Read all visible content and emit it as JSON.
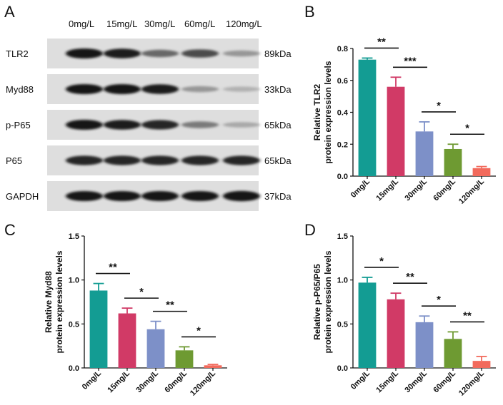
{
  "panel_letters": {
    "a": "A",
    "b": "B",
    "c": "C",
    "d": "D"
  },
  "blot": {
    "concentrations": [
      "0mg/L",
      "15mg/L",
      "30mg/L",
      "60mg/L",
      "120mg/L"
    ],
    "proteins": [
      {
        "name": "TLR2",
        "size": "89kDa",
        "intensity": [
          1.0,
          0.95,
          0.55,
          0.7,
          0.3
        ]
      },
      {
        "name": "Myd88",
        "size": "33kDa",
        "intensity": [
          1.0,
          1.0,
          0.95,
          0.3,
          0.15
        ]
      },
      {
        "name": "p-P65",
        "size": "65kDa",
        "intensity": [
          1.0,
          0.95,
          0.9,
          0.45,
          0.2
        ]
      },
      {
        "name": "P65",
        "size": "65kDa",
        "intensity": [
          0.9,
          0.9,
          0.9,
          0.9,
          0.9
        ]
      },
      {
        "name": "GAPDH",
        "size": "37kDa",
        "intensity": [
          1.0,
          1.0,
          1.0,
          1.0,
          1.05
        ]
      }
    ]
  },
  "colors": [
    "#139c93",
    "#d13a66",
    "#7d90c8",
    "#6e9a32",
    "#f26a5c"
  ],
  "chart_data": [
    {
      "panel": "B",
      "type": "bar",
      "categories": [
        "0mg/L",
        "15mg/L",
        "30mg/L",
        "60mg/L",
        "120mg/L"
      ],
      "values": [
        0.73,
        0.56,
        0.28,
        0.17,
        0.05
      ],
      "errors": [
        0.01,
        0.06,
        0.06,
        0.03,
        0.01
      ],
      "ylabel_lines": [
        "Relative TLR2",
        "protein expression levels"
      ],
      "ylim": [
        0,
        0.8
      ],
      "yticks": [
        "0.0",
        "0.2",
        "0.4",
        "0.6",
        "0.8"
      ],
      "significance": [
        {
          "from": 0,
          "to": 1,
          "label": "**"
        },
        {
          "from": 1,
          "to": 2,
          "label": "***"
        },
        {
          "from": 2,
          "to": 3,
          "label": "*"
        },
        {
          "from": 3,
          "to": 4,
          "label": "*"
        }
      ]
    },
    {
      "panel": "C",
      "type": "bar",
      "categories": [
        "0mg/L",
        "15mg/L",
        "30mg/L",
        "60mg/L",
        "120mg/L"
      ],
      "values": [
        0.88,
        0.62,
        0.44,
        0.2,
        0.03
      ],
      "errors": [
        0.08,
        0.06,
        0.09,
        0.04,
        0.01
      ],
      "ylabel_lines": [
        "Relative Myd88",
        "protein expression levels"
      ],
      "ylim": [
        0,
        1.5
      ],
      "yticks": [
        "0.0",
        "0.5",
        "1.0",
        "1.5"
      ],
      "significance": [
        {
          "from": 0,
          "to": 1,
          "label": "**"
        },
        {
          "from": 1,
          "to": 2,
          "label": "*"
        },
        {
          "from": 2,
          "to": 3,
          "label": "**"
        },
        {
          "from": 3,
          "to": 4,
          "label": "*"
        }
      ]
    },
    {
      "panel": "D",
      "type": "bar",
      "categories": [
        "0mg/L",
        "15mg/L",
        "30mg/L",
        "60mg/L",
        "120mg/L"
      ],
      "values": [
        0.97,
        0.78,
        0.52,
        0.33,
        0.08
      ],
      "errors": [
        0.06,
        0.07,
        0.07,
        0.08,
        0.05
      ],
      "ylabel_lines": [
        "Relative p-P65/P65",
        "protein expression levels"
      ],
      "ylim": [
        0,
        1.5
      ],
      "yticks": [
        "0.0",
        "0.5",
        "1.0",
        "1.5"
      ],
      "significance": [
        {
          "from": 0,
          "to": 1,
          "label": "*"
        },
        {
          "from": 1,
          "to": 2,
          "label": "**"
        },
        {
          "from": 2,
          "to": 3,
          "label": "*"
        },
        {
          "from": 3,
          "to": 4,
          "label": "**"
        }
      ]
    }
  ]
}
